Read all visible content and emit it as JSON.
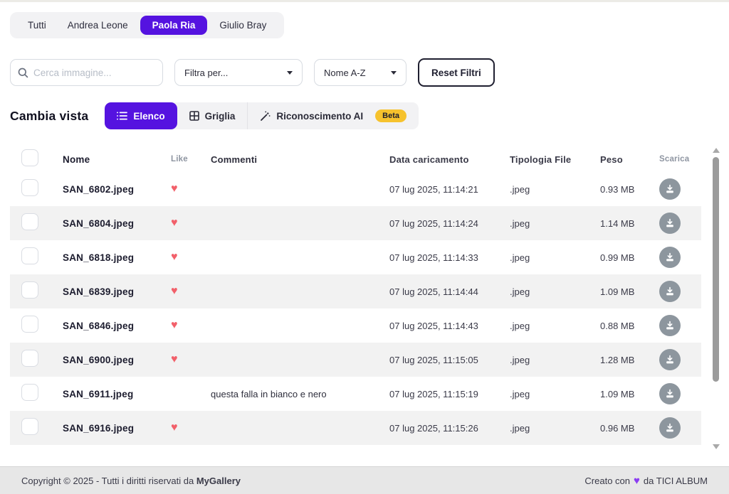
{
  "colors": {
    "accent": "#5513e0",
    "heart": "#f2606a",
    "beta": "#f6c22d",
    "dlgray": "#8d969e",
    "fheart": "#8b3df2"
  },
  "tabs": {
    "items": [
      {
        "label": "Tutti",
        "active": false
      },
      {
        "label": "Andrea Leone",
        "active": false
      },
      {
        "label": "Paola Ria",
        "active": true
      },
      {
        "label": "Giulio Bray",
        "active": false
      }
    ]
  },
  "filters": {
    "search_placeholder": "Cerca immagine...",
    "filter_select": "Filtra per...",
    "sort_select": "Nome A-Z",
    "reset_label": "Reset Filtri"
  },
  "view_switcher": {
    "label": "Cambia vista",
    "options": [
      {
        "label": "Elenco",
        "icon": "list-icon",
        "active": true
      },
      {
        "label": "Griglia",
        "icon": "grid-icon",
        "active": false
      },
      {
        "label": "Riconoscimento AI",
        "icon": "magic-wand-icon",
        "active": false,
        "badge": "Beta"
      }
    ]
  },
  "table": {
    "columns": [
      "Nome",
      "Like",
      "Commenti",
      "Data caricamento",
      "Tipologia File",
      "Peso",
      "Scarica"
    ],
    "rows": [
      {
        "name": "SAN_6802.jpeg",
        "liked": true,
        "comment": "",
        "date": "07 lug 2025, 11:14:21",
        "type": ".jpeg",
        "size": "0.93 MB"
      },
      {
        "name": "SAN_6804.jpeg",
        "liked": true,
        "comment": "",
        "date": "07 lug 2025, 11:14:24",
        "type": ".jpeg",
        "size": "1.14 MB"
      },
      {
        "name": "SAN_6818.jpeg",
        "liked": true,
        "comment": "",
        "date": "07 lug 2025, 11:14:33",
        "type": ".jpeg",
        "size": "0.99 MB"
      },
      {
        "name": "SAN_6839.jpeg",
        "liked": true,
        "comment": "",
        "date": "07 lug 2025, 11:14:44",
        "type": ".jpeg",
        "size": "1.09 MB"
      },
      {
        "name": "SAN_6846.jpeg",
        "liked": true,
        "comment": "",
        "date": "07 lug 2025, 11:14:43",
        "type": ".jpeg",
        "size": "0.88 MB"
      },
      {
        "name": "SAN_6900.jpeg",
        "liked": true,
        "comment": "",
        "date": "07 lug 2025, 11:15:05",
        "type": ".jpeg",
        "size": "1.28 MB"
      },
      {
        "name": "SAN_6911.jpeg",
        "liked": false,
        "comment": "questa falla in bianco e nero",
        "date": "07 lug 2025, 11:15:19",
        "type": ".jpeg",
        "size": "1.09 MB"
      },
      {
        "name": "SAN_6916.jpeg",
        "liked": true,
        "comment": "",
        "date": "07 lug 2025, 11:15:26",
        "type": ".jpeg",
        "size": "0.96 MB"
      }
    ]
  },
  "footer": {
    "left_prefix": "Copyright © 2025 - Tutti i diritti riservati da ",
    "brand": "MyGallery",
    "right_prefix": "Creato con",
    "right_suffix": "da TICI ALBUM"
  }
}
